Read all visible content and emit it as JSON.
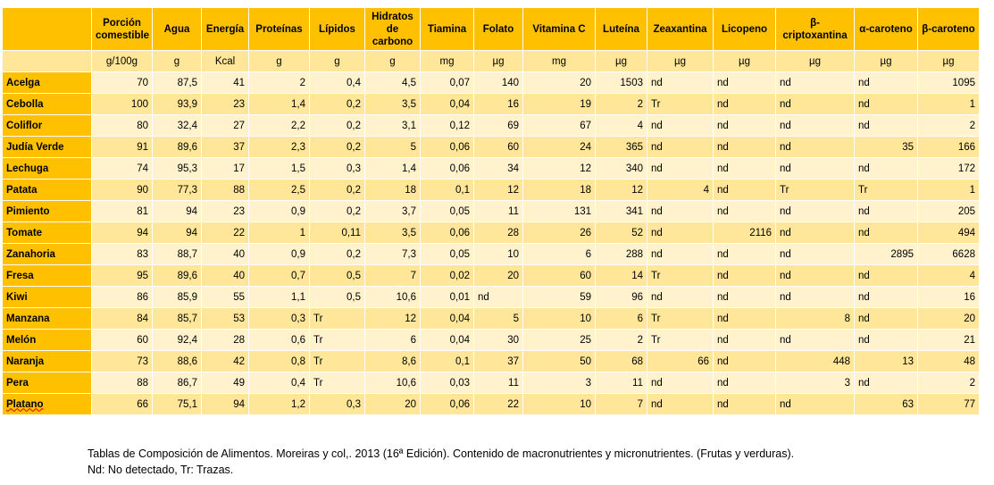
{
  "table": {
    "header_first": "",
    "columns": [
      {
        "label": "Porción comestible",
        "unit": "g/100g"
      },
      {
        "label": "Agua",
        "unit": "g"
      },
      {
        "label": "Energía",
        "unit": "Kcal"
      },
      {
        "label": "Proteínas",
        "unit": "g"
      },
      {
        "label": "Lípidos",
        "unit": "g"
      },
      {
        "label": "Hidratos de carbono",
        "unit": "g"
      },
      {
        "label": "Tiamina",
        "unit": "mg"
      },
      {
        "label": "Folato",
        "unit": "µg"
      },
      {
        "label": "Vitamina C",
        "unit": "mg"
      },
      {
        "label": "Luteína",
        "unit": "µg"
      },
      {
        "label": "Zeaxantina",
        "unit": "µg"
      },
      {
        "label": "Licopeno",
        "unit": "µg"
      },
      {
        "label": "β-criptoxantina",
        "unit": "µg"
      },
      {
        "label": "α-caroteno",
        "unit": "µg"
      },
      {
        "label": "β-caroteno",
        "unit": "µg"
      }
    ],
    "rows": [
      {
        "name": "Acelga",
        "cells": [
          "70",
          "87,5",
          "41",
          "2",
          "0,4",
          "4,5",
          "0,07",
          "140",
          "20",
          "1503",
          "nd",
          "nd",
          "nd",
          "nd",
          "1095"
        ]
      },
      {
        "name": "Cebolla",
        "cells": [
          "100",
          "93,9",
          "23",
          "1,4",
          "0,2",
          "3,5",
          "0,04",
          "16",
          "19",
          "2",
          "Tr",
          "nd",
          "nd",
          "nd",
          "1"
        ]
      },
      {
        "name": "Coliflor",
        "cells": [
          "80",
          "32,4",
          "27",
          "2,2",
          "0,2",
          "3,1",
          "0,12",
          "69",
          "67",
          "4",
          "nd",
          "nd",
          "nd",
          "nd",
          "2"
        ]
      },
      {
        "name": "Judía Verde",
        "cells": [
          "91",
          "89,6",
          "37",
          "2,3",
          "0,2",
          "5",
          "0,06",
          "60",
          "24",
          "365",
          "nd",
          "nd",
          "nd",
          "35",
          "166"
        ]
      },
      {
        "name": "Lechuga",
        "cells": [
          "74",
          "95,3",
          "17",
          "1,5",
          "0,3",
          "1,4",
          "0,06",
          "34",
          "12",
          "340",
          "nd",
          "nd",
          "nd",
          "nd",
          "172"
        ]
      },
      {
        "name": "Patata",
        "cells": [
          "90",
          "77,3",
          "88",
          "2,5",
          "0,2",
          "18",
          "0,1",
          "12",
          "18",
          "12",
          "4",
          "nd",
          "Tr",
          "Tr",
          "1"
        ]
      },
      {
        "name": "Pimiento",
        "cells": [
          "81",
          "94",
          "23",
          "0,9",
          "0,2",
          "3,7",
          "0,05",
          "11",
          "131",
          "341",
          "nd",
          "nd",
          "nd",
          "nd",
          "205"
        ]
      },
      {
        "name": "Tomate",
        "cells": [
          "94",
          "94",
          "22",
          "1",
          "0,11",
          "3,5",
          "0,06",
          "28",
          "26",
          "52",
          "nd",
          "2116",
          "nd",
          "nd",
          "494"
        ]
      },
      {
        "name": "Zanahoria",
        "cells": [
          "83",
          "88,7",
          "40",
          "0,9",
          "0,2",
          "7,3",
          "0,05",
          "10",
          "6",
          "288",
          "nd",
          "nd",
          "nd",
          "2895",
          "6628"
        ]
      },
      {
        "name": "Fresa",
        "cells": [
          "95",
          "89,6",
          "40",
          "0,7",
          "0,5",
          "7",
          "0,02",
          "20",
          "60",
          "14",
          "Tr",
          "nd",
          "nd",
          "nd",
          "4"
        ]
      },
      {
        "name": "Kiwi",
        "cells": [
          "86",
          "85,9",
          "55",
          "1,1",
          "0,5",
          "10,6",
          "0,01",
          "nd",
          "59",
          "96",
          "nd",
          "nd",
          "nd",
          "nd",
          "16"
        ]
      },
      {
        "name": "Manzana",
        "cells": [
          "84",
          "85,7",
          "53",
          "0,3",
          "Tr",
          "12",
          "0,04",
          "5",
          "10",
          "6",
          "Tr",
          "nd",
          "8",
          "nd",
          "20"
        ]
      },
      {
        "name": "Melón",
        "cells": [
          "60",
          "92,4",
          "28",
          "0,6",
          "Tr",
          "6",
          "0,04",
          "30",
          "25",
          "2",
          "Tr",
          "nd",
          "nd",
          "nd",
          "21"
        ]
      },
      {
        "name": "Naranja",
        "cells": [
          "73",
          "88,6",
          "42",
          "0,8",
          "Tr",
          "8,6",
          "0,1",
          "37",
          "50",
          "68",
          "66",
          "nd",
          "448",
          "13",
          "48"
        ]
      },
      {
        "name": "Pera",
        "cells": [
          "88",
          "86,7",
          "49",
          "0,4",
          "Tr",
          "10,6",
          "0,03",
          "11",
          "3",
          "11",
          "nd",
          "nd",
          "3",
          "nd",
          "2"
        ]
      },
      {
        "name": "Platano",
        "cells": [
          "66",
          "75,1",
          "94",
          "1,2",
          "0,3",
          "20",
          "0,06",
          "22",
          "10",
          "7",
          "nd",
          "nd",
          "nd",
          "63",
          "77"
        ]
      }
    ]
  },
  "footnote": {
    "line1": "Tablas de Composición de Alimentos. Moreiras y col,. 2013 (16ª Edición). Contenido de macronutrientes y micronutrientes. (Frutas y verduras).",
    "line2": "Nd: No detectado, Tr: Trazas."
  }
}
